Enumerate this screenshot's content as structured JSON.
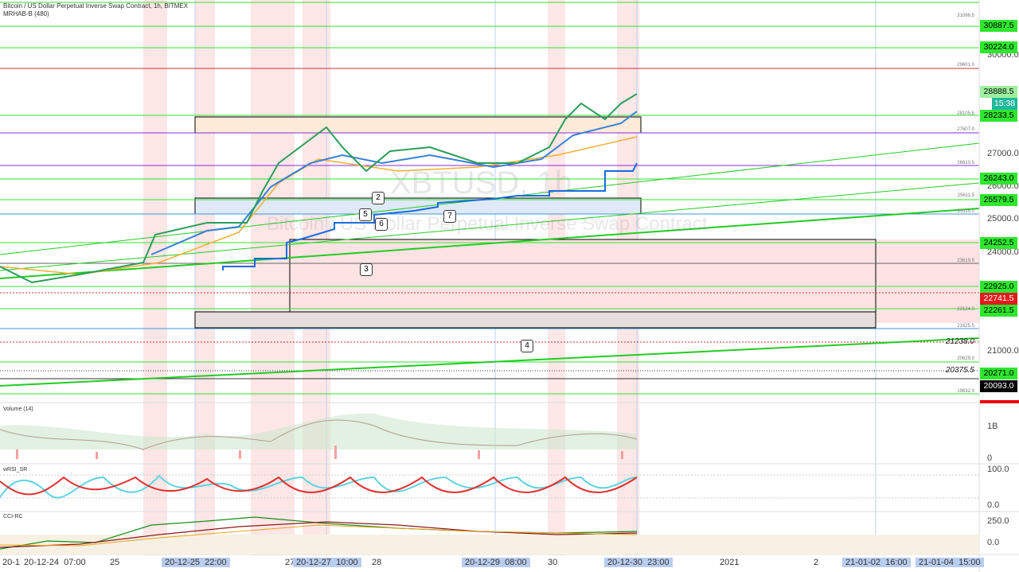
{
  "header": {
    "symbol_line": "Bitcoin / US Dollar Perpetual Inverse Swap Contract, 1h, BITMEX",
    "indicator": "MRHAB-B (480)"
  },
  "watermark": {
    "symbol": "XBTUSD, 1h",
    "description": "Bitcoin / US Dollar Perpetual Inverse Swap Contract"
  },
  "price_axis": {
    "grid_labels": [
      "30000.0",
      "27000.0",
      "26000.0",
      "25000.0",
      "24000.0",
      "21000.0"
    ],
    "badges": [
      "30887.5",
      "30224.0",
      "28888.5",
      "15:38",
      "28233.5",
      "26243.0",
      "25579.5",
      "24252.5",
      "22925.0",
      "22741.5",
      "22261.5",
      "20271.0",
      "20093.0"
    ]
  },
  "level_labels": [
    "31096.5",
    "29601.0",
    "28105.5",
    "27607.0",
    "26610.5",
    "25611.5",
    "25115.0",
    "23619.5",
    "22124.0",
    "21625.5",
    "20629.0",
    "19632.0"
  ],
  "line_labels": [
    "21238.0",
    "20375.5"
  ],
  "markers": [
    "2",
    "5",
    "6",
    "7",
    "3",
    "4"
  ],
  "panes": {
    "volume": {
      "title": "Volume (14)",
      "labels": [
        "1B",
        "0"
      ]
    },
    "rsi": {
      "title": "wRSI_SR",
      "labels": [
        "100.0",
        "0.0"
      ]
    },
    "cci": {
      "title": "CCI-RC",
      "labels": [
        "250.0",
        "0.0"
      ]
    }
  },
  "time_axis": {
    "labels": [
      "20-1",
      "20-12-24  07:00",
      "25",
      "20-12-25  22:00",
      "27",
      "20-12-27  10:00",
      "28",
      "20-12-29  08:00",
      "30",
      "20-12-30  23:00",
      "2021",
      "2",
      "21-01-02  16:00",
      "21-01-04  15:00"
    ]
  }
}
